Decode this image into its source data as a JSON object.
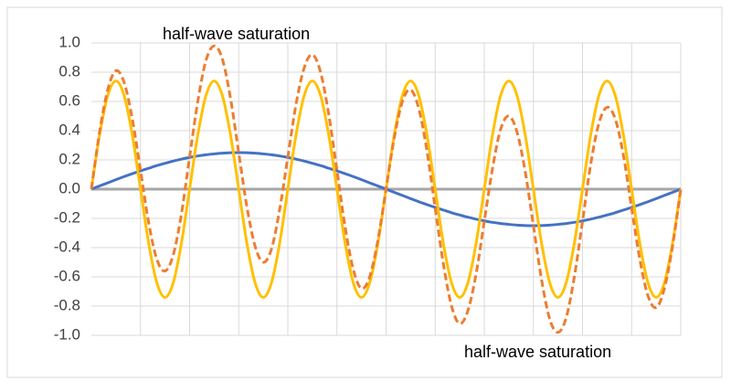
{
  "chart_data": {
    "type": "line",
    "annotations": [
      "half-wave saturation",
      "half-wave saturation"
    ],
    "categories": [
      null,
      null,
      null,
      null,
      null,
      null,
      null,
      null,
      null,
      null,
      null,
      null,
      null,
      null,
      null,
      null,
      null,
      null,
      null,
      null,
      null,
      null,
      null,
      null,
      null,
      null,
      null,
      null,
      null,
      null,
      null,
      null,
      null,
      null,
      null,
      null,
      null,
      null,
      null,
      null,
      null,
      null,
      null,
      null,
      null,
      null,
      null,
      null,
      null,
      null,
      null,
      null,
      null,
      null,
      null,
      null,
      null,
      null,
      null,
      null,
      null,
      null,
      null,
      null,
      null,
      null,
      null,
      null,
      null,
      null,
      null,
      null,
      null
    ],
    "series": [
      {
        "color": "#4472c4",
        "dashed": false,
        "values": [
          0,
          0.022,
          0.043,
          0.065,
          0.086,
          0.106,
          0.125,
          0.143,
          0.161,
          0.177,
          0.192,
          0.205,
          0.217,
          0.227,
          0.235,
          0.241,
          0.246,
          0.249,
          0.25,
          0.249,
          0.246,
          0.241,
          0.235,
          0.227,
          0.217,
          0.205,
          0.192,
          0.177,
          0.161,
          0.143,
          0.125,
          0.106,
          0.086,
          0.065,
          0.043,
          0.022,
          0,
          -0.022,
          -0.043,
          -0.065,
          -0.086,
          -0.106,
          -0.125,
          -0.143,
          -0.161,
          -0.177,
          -0.192,
          -0.205,
          -0.217,
          -0.227,
          -0.235,
          -0.241,
          -0.246,
          -0.249,
          -0.25,
          -0.249,
          -0.246,
          -0.241,
          -0.235,
          -0.227,
          -0.217,
          -0.205,
          -0.192,
          -0.177,
          -0.161,
          -0.143,
          -0.125,
          -0.106,
          -0.086,
          -0.065,
          -0.043,
          -0.022,
          0
        ]
      },
      {
        "color": "#ffc000",
        "dashed": false,
        "values": [
          0,
          0.37,
          0.64,
          0.74,
          0.64,
          0.37,
          0,
          -0.37,
          -0.64,
          -0.74,
          -0.64,
          -0.37,
          0,
          0.37,
          0.64,
          0.74,
          0.64,
          0.37,
          0,
          -0.37,
          -0.64,
          -0.74,
          -0.64,
          -0.37,
          0,
          0.37,
          0.64,
          0.74,
          0.64,
          0.37,
          0,
          -0.37,
          -0.64,
          -0.74,
          -0.64,
          -0.37,
          0,
          0.37,
          0.64,
          0.74,
          0.64,
          0.37,
          0,
          -0.37,
          -0.64,
          -0.74,
          -0.64,
          -0.37,
          0,
          0.37,
          0.64,
          0.74,
          0.64,
          0.37,
          0,
          -0.37,
          -0.64,
          -0.74,
          -0.64,
          -0.37,
          0,
          0.37,
          0.64,
          0.74,
          0.64,
          0.37,
          0,
          -0.37,
          -0.64,
          -0.74,
          -0.64,
          -0.37,
          0
        ]
      },
      {
        "color": "#ed7d31",
        "dashed": true,
        "values": [
          0,
          0.39,
          0.68,
          0.81,
          0.73,
          0.48,
          0.13,
          -0.23,
          -0.48,
          -0.56,
          -0.45,
          -0.17,
          0.22,
          0.6,
          0.88,
          0.98,
          0.89,
          0.62,
          0.25,
          -0.12,
          -0.39,
          -0.5,
          -0.41,
          -0.14,
          0.22,
          0.58,
          0.83,
          0.92,
          0.8,
          0.51,
          0.13,
          -0.26,
          -0.55,
          -0.68,
          -0.6,
          -0.35,
          0,
          0.35,
          0.6,
          0.68,
          0.55,
          0.26,
          -0.13,
          -0.51,
          -0.8,
          -0.92,
          -0.83,
          -0.58,
          -0.22,
          0.14,
          0.41,
          0.5,
          0.39,
          0.12,
          -0.25,
          -0.62,
          -0.89,
          -0.98,
          -0.88,
          -0.6,
          -0.22,
          0.17,
          0.45,
          0.56,
          0.48,
          0.23,
          -0.13,
          -0.48,
          -0.73,
          -0.81,
          -0.68,
          -0.39,
          0
        ]
      }
    ],
    "ylim": [
      -1,
      1
    ],
    "yticks": [
      {
        "value": -1,
        "label": "-1.0"
      },
      -0.8,
      -0.6,
      -0.4,
      -0.2,
      {
        "value": 0,
        "label": "0.0"
      },
      0.2,
      0.4,
      0.6,
      0.8,
      {
        "value": 1,
        "label": "1.0"
      }
    ],
    "grid": true
  }
}
